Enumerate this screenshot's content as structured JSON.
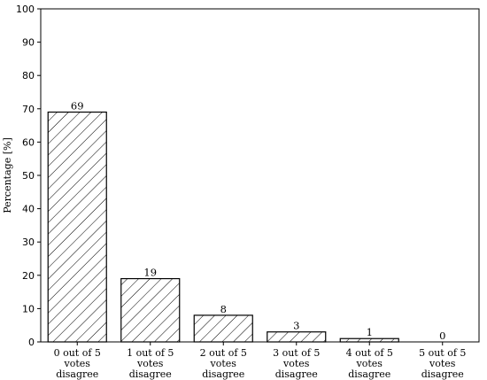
{
  "chart_data": {
    "type": "bar",
    "categories": [
      [
        "0 out of 5",
        "votes",
        "disagree"
      ],
      [
        "1 out of 5",
        "votes",
        "disagree"
      ],
      [
        "2 out of 5",
        "votes",
        "disagree"
      ],
      [
        "3 out of 5",
        "votes",
        "disagree"
      ],
      [
        "4 out of 5",
        "votes",
        "disagree"
      ],
      [
        "5 out of 5",
        "votes",
        "disagree"
      ]
    ],
    "values": [
      69,
      19,
      8,
      3,
      1,
      0
    ],
    "data_labels": [
      "69",
      "19",
      "8",
      "3",
      "1",
      "0"
    ],
    "title": "",
    "xlabel": "",
    "ylabel": "Percentage [%]",
    "ylim": [
      0,
      100
    ],
    "yticks": [
      0,
      10,
      20,
      30,
      40,
      50,
      60,
      70,
      80,
      90,
      100
    ],
    "bar_fill": "hatched",
    "bar_color": "#ffffff",
    "edge_color": "#000000",
    "grid": false,
    "legend": "none"
  }
}
